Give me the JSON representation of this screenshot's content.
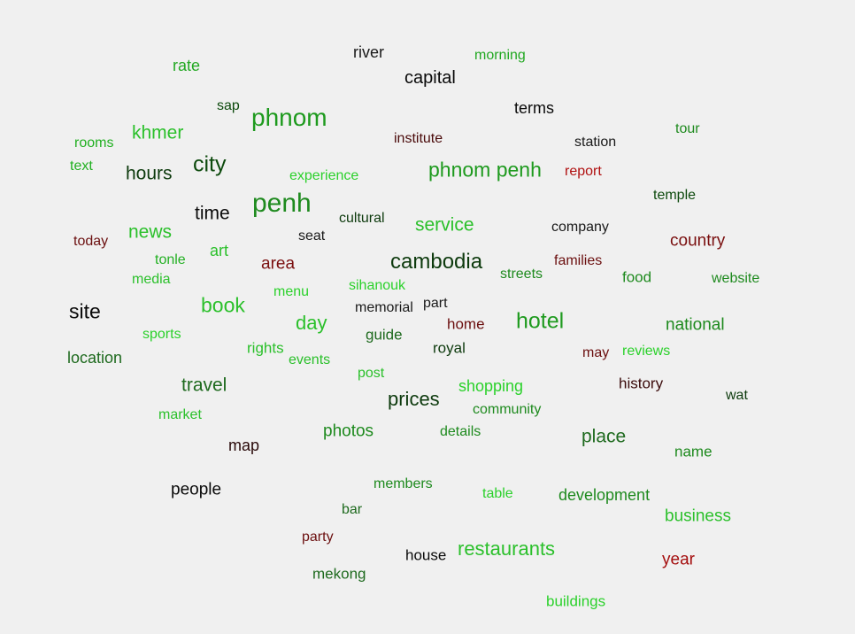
{
  "colors": {
    "black": "#0a0a0a",
    "dark_green": "#0d6e1a",
    "green": "#1ea01e",
    "light_green": "#2bd12b",
    "dark_red": "#6b0f0f",
    "red": "#a50f0f"
  },
  "words": [
    {
      "text": "river",
      "color": "#1a1a1a"
    },
    {
      "text": "morning",
      "color": "#22a822"
    },
    {
      "text": "rate",
      "color": "#22a822"
    },
    {
      "text": "capital",
      "color": "#0a0a0a"
    },
    {
      "text": "sap",
      "color": "#0d4a0d"
    },
    {
      "text": "phnom",
      "color": "#1e9a1e"
    },
    {
      "text": "terms",
      "color": "#0a0a0a"
    },
    {
      "text": "tour",
      "color": "#1e8a1e"
    },
    {
      "text": "institute",
      "color": "#4a0a0a"
    },
    {
      "text": "station",
      "color": "#1a1a1a"
    },
    {
      "text": "rooms",
      "color": "#22b022"
    },
    {
      "text": "khmer",
      "color": "#2bc02b"
    },
    {
      "text": "text",
      "color": "#22b022"
    },
    {
      "text": "hours",
      "color": "#0d3a0d"
    },
    {
      "text": "city",
      "color": "#0d4a0d"
    },
    {
      "text": "experience",
      "color": "#2bd12b"
    },
    {
      "text": "phnom penh",
      "color": "#1e9a1e"
    },
    {
      "text": "report",
      "color": "#b01010"
    },
    {
      "text": "temple",
      "color": "#0d4a0d"
    },
    {
      "text": "penh",
      "color": "#1e8a1e"
    },
    {
      "text": "time",
      "color": "#0a0a0a"
    },
    {
      "text": "cultural",
      "color": "#0d3a0d"
    },
    {
      "text": "service",
      "color": "#2bc02b"
    },
    {
      "text": "company",
      "color": "#1a1a1a"
    },
    {
      "text": "today",
      "color": "#6b0f0f"
    },
    {
      "text": "news",
      "color": "#2bc02b"
    },
    {
      "text": "seat",
      "color": "#1a1a1a"
    },
    {
      "text": "country",
      "color": "#7a0f0f"
    },
    {
      "text": "art",
      "color": "#2bc02b"
    },
    {
      "text": "tonle",
      "color": "#22b022"
    },
    {
      "text": "area",
      "color": "#7a0f0f"
    },
    {
      "text": "cambodia",
      "color": "#0d3a0d"
    },
    {
      "text": "families",
      "color": "#6b0f0f"
    },
    {
      "text": "media",
      "color": "#2bc02b"
    },
    {
      "text": "streets",
      "color": "#1e8a1e"
    },
    {
      "text": "food",
      "color": "#1e8a1e"
    },
    {
      "text": "website",
      "color": "#1e8a1e"
    },
    {
      "text": "menu",
      "color": "#2bd12b"
    },
    {
      "text": "sihanouk",
      "color": "#2bd12b"
    },
    {
      "text": "site",
      "color": "#0a0a0a"
    },
    {
      "text": "book",
      "color": "#2bc02b"
    },
    {
      "text": "part",
      "color": "#1a1a1a"
    },
    {
      "text": "memorial",
      "color": "#1a1a1a"
    },
    {
      "text": "day",
      "color": "#2bc02b"
    },
    {
      "text": "home",
      "color": "#6b0f0f"
    },
    {
      "text": "hotel",
      "color": "#1e9a1e"
    },
    {
      "text": "national",
      "color": "#1e8a1e"
    },
    {
      "text": "sports",
      "color": "#2bd12b"
    },
    {
      "text": "guide",
      "color": "#1e6a1e"
    },
    {
      "text": "rights",
      "color": "#2bc02b"
    },
    {
      "text": "royal",
      "color": "#0d3a0d"
    },
    {
      "text": "location",
      "color": "#1e6a1e"
    },
    {
      "text": "events",
      "color": "#2bc02b"
    },
    {
      "text": "may",
      "color": "#6b0f0f"
    },
    {
      "text": "reviews",
      "color": "#2bd12b"
    },
    {
      "text": "post",
      "color": "#2bc02b"
    },
    {
      "text": "travel",
      "color": "#1e6a1e"
    },
    {
      "text": "shopping",
      "color": "#2bd12b"
    },
    {
      "text": "history",
      "color": "#3a0a0a"
    },
    {
      "text": "wat",
      "color": "#0d3a0d"
    },
    {
      "text": "prices",
      "color": "#0d3a0d"
    },
    {
      "text": "market",
      "color": "#2bc02b"
    },
    {
      "text": "community",
      "color": "#1e8a1e"
    },
    {
      "text": "photos",
      "color": "#1e8a1e"
    },
    {
      "text": "details",
      "color": "#1e8a1e"
    },
    {
      "text": "place",
      "color": "#1e6a1e"
    },
    {
      "text": "map",
      "color": "#2a0a0a"
    },
    {
      "text": "name",
      "color": "#1e8a1e"
    },
    {
      "text": "people",
      "color": "#0a0a0a"
    },
    {
      "text": "members",
      "color": "#1e8a1e"
    },
    {
      "text": "table",
      "color": "#2bd12b"
    },
    {
      "text": "development",
      "color": "#1e8a1e"
    },
    {
      "text": "bar",
      "color": "#1e6a1e"
    },
    {
      "text": "business",
      "color": "#2bc02b"
    },
    {
      "text": "party",
      "color": "#6b0f0f"
    },
    {
      "text": "restaurants",
      "color": "#2bc02b"
    },
    {
      "text": "house",
      "color": "#0a0a0a"
    },
    {
      "text": "year",
      "color": "#a50f0f"
    },
    {
      "text": "mekong",
      "color": "#1e6a1e"
    },
    {
      "text": "buildings",
      "color": "#2bd12b"
    }
  ]
}
